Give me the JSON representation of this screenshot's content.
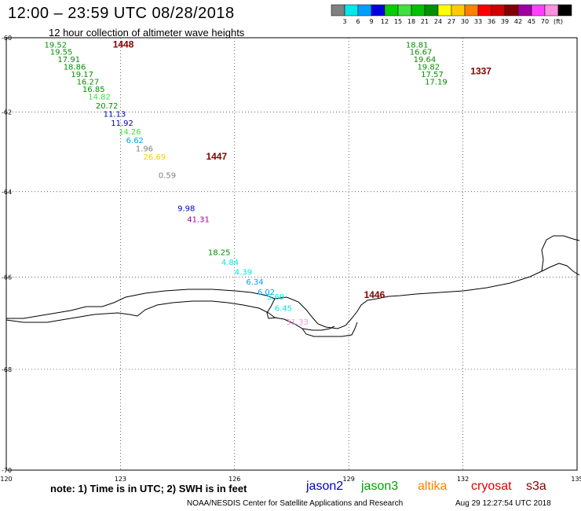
{
  "header": {
    "title": "12:00 – 23:59 UTC 08/28/2018",
    "subtitle": "12 hour collection of altimeter wave heights"
  },
  "colorbar": {
    "colors": [
      "#808080",
      "#00e8e8",
      "#00a0ff",
      "#0000e0",
      "#00d000",
      "#40e040",
      "#00c000",
      "#009000",
      "#ffff00",
      "#ffcc00",
      "#ff8000",
      "#ff0000",
      "#d00000",
      "#800000",
      "#a000a0",
      "#ff40ff",
      "#ff90e0",
      "#000000"
    ],
    "labels": [
      "3",
      "6",
      "9",
      "12",
      "15",
      "18",
      "21",
      "24",
      "27",
      "30",
      "33",
      "36",
      "39",
      "42",
      "45",
      "70",
      "(ft)"
    ]
  },
  "chart_data": {
    "type": "scatter",
    "xlim": [
      120,
      135
    ],
    "ylim": [
      -70,
      -60
    ],
    "x_ticks": [
      "120",
      "123",
      "126",
      "129",
      "132",
      "135"
    ],
    "y_ticks": [
      "-60",
      "-62",
      "-64",
      "-66",
      "-68",
      "-70"
    ],
    "tracks": [
      {
        "time": "1448",
        "time_pos": [
          122.8,
          -60.27
        ],
        "time_color": "#800000",
        "points": [
          {
            "lon": 121.0,
            "lat": -60.27,
            "value": "19.52",
            "color": "#009000"
          },
          {
            "lon": 121.15,
            "lat": -60.47,
            "value": "19.55",
            "color": "#009000"
          },
          {
            "lon": 121.35,
            "lat": -60.67,
            "value": "17.91",
            "color": "#009000"
          },
          {
            "lon": 121.5,
            "lat": -60.87,
            "value": "18.86",
            "color": "#009000"
          },
          {
            "lon": 121.7,
            "lat": -61.07,
            "value": "19.17",
            "color": "#009000"
          },
          {
            "lon": 121.85,
            "lat": -61.27,
            "value": "16.27",
            "color": "#009000"
          },
          {
            "lon": 122.0,
            "lat": -61.47,
            "value": "16.85",
            "color": "#009000"
          },
          {
            "lon": 122.15,
            "lat": -61.67,
            "value": "14.82",
            "color": "#40e040"
          },
          {
            "lon": 122.35,
            "lat": -61.9,
            "value": "20.72",
            "color": "#009000"
          },
          {
            "lon": 122.55,
            "lat": -62.12,
            "value": "11.13",
            "color": "#0000c0"
          },
          {
            "lon": 122.75,
            "lat": -62.35,
            "value": "11.92",
            "color": "#0000c0"
          },
          {
            "lon": 122.95,
            "lat": -62.57,
            "value": "14.26",
            "color": "#40e040"
          },
          {
            "lon": 123.15,
            "lat": -62.79,
            "value": "6.62",
            "color": "#00a0ff"
          },
          {
            "lon": 123.4,
            "lat": -63.0,
            "value": "1.96",
            "color": "#808080"
          },
          {
            "lon": 123.6,
            "lat": -63.21,
            "value": "26.69",
            "color": "#ffcc00"
          },
          {
            "lon": 124.0,
            "lat": -63.67,
            "value": "0.59",
            "color": "#808080"
          },
          {
            "lon": 124.5,
            "lat": -64.47,
            "value": "9.98",
            "color": "#0000c0"
          },
          {
            "lon": 124.75,
            "lat": -64.73,
            "value": "41.31",
            "color": "#a000a0"
          }
        ]
      },
      {
        "time": "1447",
        "time_pos": [
          125.25,
          -63.21
        ],
        "time_color": "#800000",
        "points": []
      },
      {
        "time": "1446",
        "time_pos": [
          129.4,
          -66.47
        ],
        "time_color": "#800000",
        "points": [
          {
            "lon": 125.3,
            "lat": -65.5,
            "value": "18.25",
            "color": "#009000"
          },
          {
            "lon": 125.65,
            "lat": -65.73,
            "value": "4.84",
            "color": "#00e8e8"
          },
          {
            "lon": 126.0,
            "lat": -65.95,
            "value": "4.39",
            "color": "#00e8e8"
          },
          {
            "lon": 126.3,
            "lat": -66.17,
            "value": "6.34",
            "color": "#00a0ff"
          },
          {
            "lon": 126.6,
            "lat": -66.4,
            "value": "6.02",
            "color": "#00a0ff"
          },
          {
            "lon": 126.85,
            "lat": -66.5,
            "value": "5.69",
            "color": "#00e8e8"
          },
          {
            "lon": 127.05,
            "lat": -66.75,
            "value": "6.45",
            "color": "#00e8e8"
          },
          {
            "lon": 127.35,
            "lat": -67.05,
            "value": "31.33",
            "color": "#ff90e0"
          }
        ]
      },
      {
        "time": "1337",
        "time_pos": [
          132.2,
          -61.0
        ],
        "time_color": "#e00000",
        "points": [
          {
            "lon": 130.5,
            "lat": -60.27,
            "value": "18.81",
            "color": "#009000"
          },
          {
            "lon": 130.6,
            "lat": -60.47,
            "value": "16.67",
            "color": "#009000"
          },
          {
            "lon": 130.7,
            "lat": -60.67,
            "value": "19.64",
            "color": "#009000"
          },
          {
            "lon": 130.8,
            "lat": -60.87,
            "value": "19.82",
            "color": "#009000"
          },
          {
            "lon": 130.9,
            "lat": -61.07,
            "value": "17.57",
            "color": "#009000"
          },
          {
            "lon": 131.0,
            "lat": -61.27,
            "value": "17.19",
            "color": "#009000"
          }
        ]
      }
    ]
  },
  "footer": {
    "note": "note: 1) Time is in UTC; 2) SWH is in feet",
    "satellites": [
      {
        "name": "jason2",
        "color": "#0000c0"
      },
      {
        "name": "jason3",
        "color": "#00a000"
      },
      {
        "name": "altika",
        "color": "#ff8000"
      },
      {
        "name": "cryosat",
        "color": "#e00000"
      },
      {
        "name": "s3a",
        "color": "#800000"
      }
    ],
    "credit": "NOAA/NESDIS Center for Satellite Applications and Research",
    "date": "Aug 29 12:27:54 UTC 2018"
  }
}
